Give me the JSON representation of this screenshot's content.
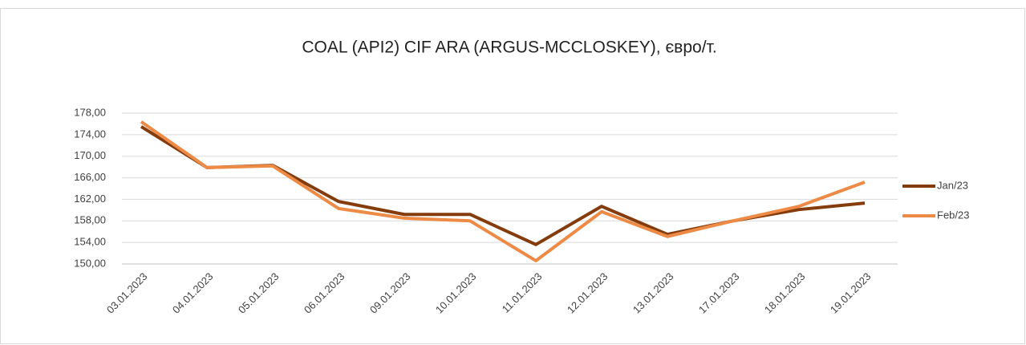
{
  "chart_data": {
    "type": "line",
    "title": "COAL (API2) CIF ARA (ARGUS-MCCLOSKEY), євро/т.",
    "categories": [
      "03.01.2023",
      "04.01.2023",
      "05.01.2023",
      "06.01.2023",
      "09.01.2023",
      "10.01.2023",
      "11.01.2023",
      "12.01.2023",
      "13.01.2023",
      "17.01.2023",
      "18.01.2023",
      "19.01.2023"
    ],
    "series": [
      {
        "name": "Jan/23",
        "color": "#843c0c",
        "values": [
          175.5,
          167.9,
          168.3,
          161.6,
          159.2,
          159.2,
          153.6,
          160.7,
          155.5,
          158,
          160.1,
          161.3
        ]
      },
      {
        "name": "Feb/23",
        "color": "#ed8a45",
        "values": [
          176.4,
          167.9,
          168.2,
          160.3,
          158.5,
          158,
          150.6,
          159.7,
          155.1,
          158,
          160.7,
          165.2
        ]
      }
    ],
    "ylim": [
      150,
      178
    ],
    "yticks": [
      {
        "value": 150,
        "label": "150,00"
      },
      {
        "value": 154,
        "label": "154,00"
      },
      {
        "value": 158,
        "label": "158,00"
      },
      {
        "value": 162,
        "label": "162,00"
      },
      {
        "value": 166,
        "label": "166,00"
      },
      {
        "value": 170,
        "label": "170,00"
      },
      {
        "value": 174,
        "label": "174,00"
      },
      {
        "value": 178,
        "label": "178,00"
      }
    ],
    "grid": true,
    "legend": "right"
  }
}
